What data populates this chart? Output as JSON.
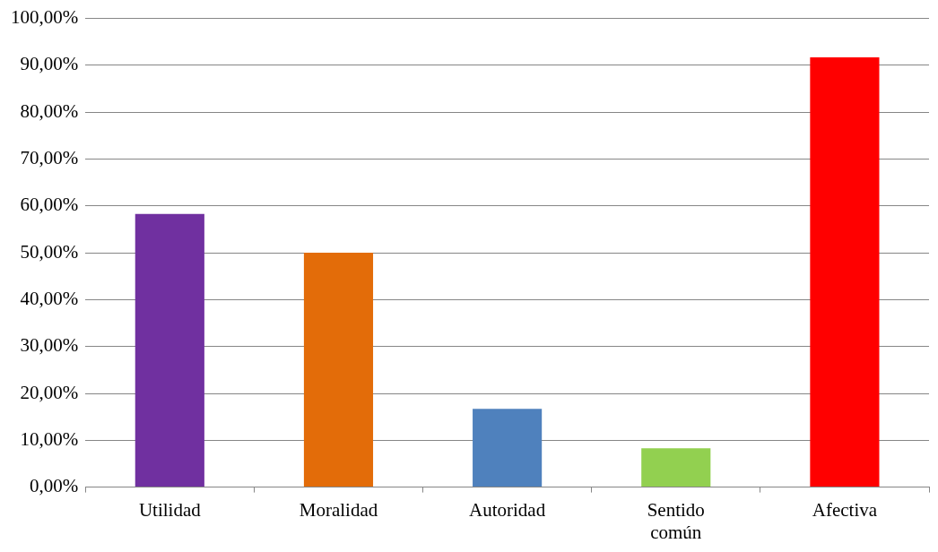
{
  "chart_data": {
    "type": "bar",
    "categories": [
      "Utilidad",
      "Moralidad",
      "Autoridad",
      "Sentido común",
      "Afectiva"
    ],
    "values": [
      58.3,
      50,
      16.7,
      8.3,
      91.7
    ],
    "colors": [
      "#7030a0",
      "#e36c09",
      "#4f81bd",
      "#92d050",
      "#ff0000"
    ],
    "ylim": [
      0,
      100
    ],
    "yticks": [
      {
        "value": 0,
        "label": "0,00%"
      },
      {
        "value": 10,
        "label": "10,00%"
      },
      {
        "value": 20,
        "label": "20,00%"
      },
      {
        "value": 30,
        "label": "30,00%"
      },
      {
        "value": 40,
        "label": "40,00%"
      },
      {
        "value": 50,
        "label": "50,00%"
      },
      {
        "value": 60,
        "label": "60,00%"
      },
      {
        "value": 70,
        "label": "70,00%"
      },
      {
        "value": 80,
        "label": "80,00%"
      },
      {
        "value": 90,
        "label": "90,00%"
      },
      {
        "value": 100,
        "label": "100,00%"
      }
    ],
    "grid": "y",
    "legend": false
  }
}
